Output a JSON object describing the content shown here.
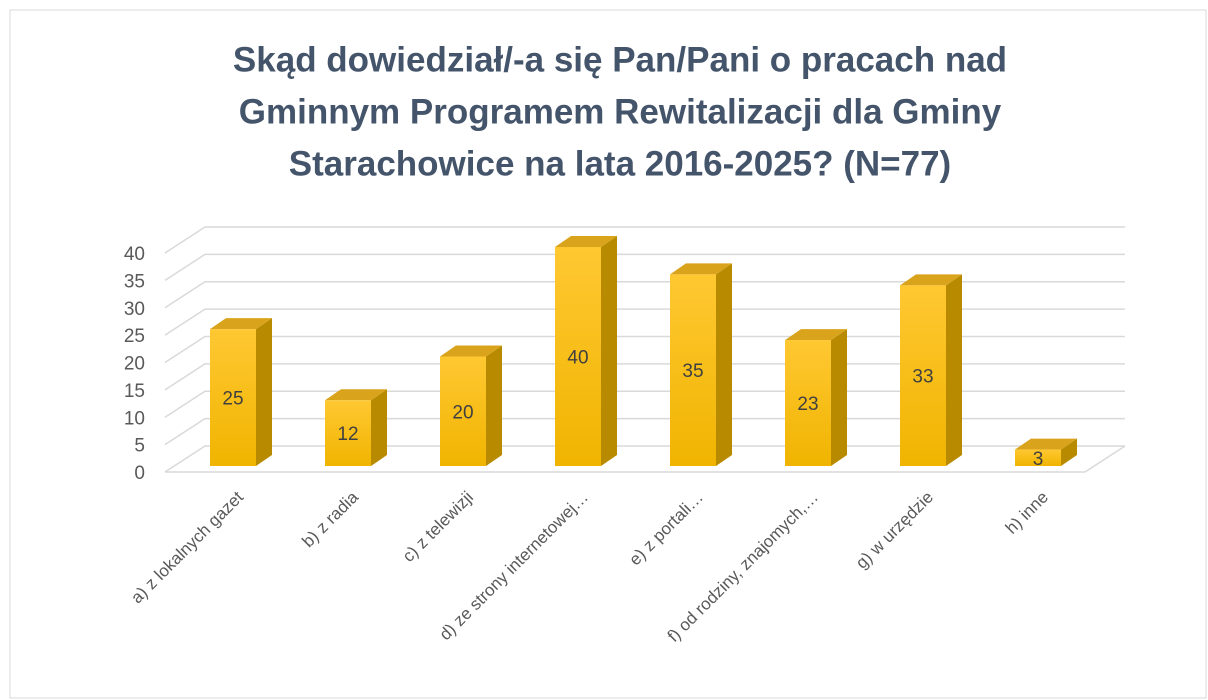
{
  "chart_data": {
    "type": "bar3d",
    "title": [
      "Skąd dowiedział/-a się Pan/Pani o pracach nad",
      "Gminnym Programem Rewitalizacji dla Gminy",
      "Starachowice na lata 2016-2025? (N=77)"
    ],
    "categories": [
      "a) z lokalnych gazet",
      "b) z radia",
      "c) z telewizji",
      "d) ze strony internetowej…",
      "e) z portali…",
      "f) od rodziny, znajomych,…",
      "g) w urzędzie",
      "h) inne"
    ],
    "values": [
      25,
      12,
      20,
      40,
      35,
      23,
      33,
      3
    ],
    "color": "#ffc000",
    "ylim": [
      0,
      40
    ],
    "yticks": [
      0,
      5,
      10,
      15,
      20,
      25,
      30,
      35,
      40
    ],
    "grid": true
  }
}
